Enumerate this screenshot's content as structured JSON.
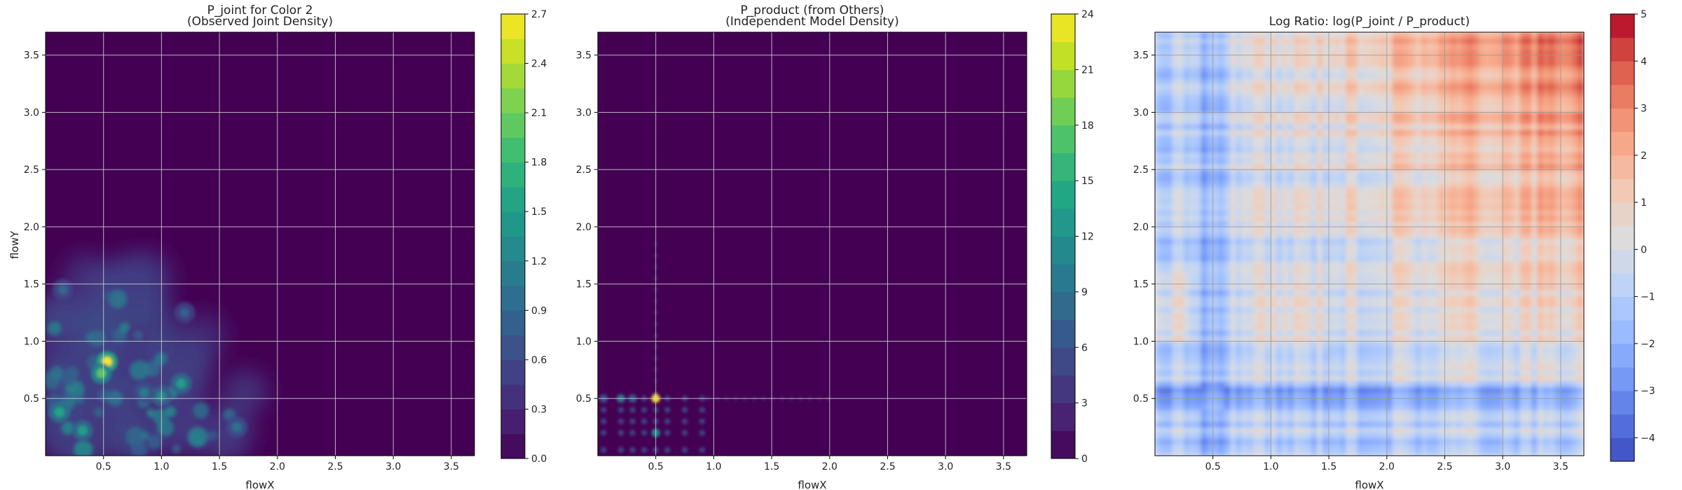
{
  "chart_data": [
    {
      "type": "heatmap",
      "title": "P_joint for Color 2",
      "subtitle": "(Observed Joint Density)",
      "xlabel": "flowX",
      "ylabel": "flowY",
      "xlim": [
        0.0,
        3.7
      ],
      "ylim": [
        0.0,
        3.7
      ],
      "xticks": [
        "0.5",
        "1.0",
        "1.5",
        "2.0",
        "2.5",
        "3.0",
        "3.5"
      ],
      "yticks": [
        "0.5",
        "1.0",
        "1.5",
        "2.0",
        "2.5",
        "3.0",
        "3.5"
      ],
      "grid": true,
      "colormap": "viridis",
      "colorbar": {
        "range": [
          0,
          2.7
        ],
        "ticks": [
          "0.0",
          "0.3",
          "0.6",
          "0.9",
          "1.2",
          "1.5",
          "1.8",
          "2.1",
          "2.4",
          "2.7"
        ],
        "levels": 18
      },
      "background_color": "#440154",
      "hotspots": [
        {
          "x": 0.53,
          "y": 0.82,
          "value": 2.7
        },
        {
          "x": 0.48,
          "y": 0.72,
          "value": 2.0
        },
        {
          "x": 1.17,
          "y": 0.63,
          "value": 1.5
        },
        {
          "x": 0.12,
          "y": 0.38,
          "value": 1.6
        },
        {
          "x": 0.32,
          "y": 0.22,
          "value": 1.5
        },
        {
          "x": 0.85,
          "y": 0.55,
          "value": 1.1
        },
        {
          "x": 1.65,
          "y": 0.25,
          "value": 1.0
        },
        {
          "x": 1.0,
          "y": 0.52,
          "value": 1.3
        },
        {
          "x": 0.15,
          "y": 1.45,
          "value": 0.9
        },
        {
          "x": 1.2,
          "y": 1.25,
          "value": 0.8
        },
        {
          "x": 0.8,
          "y": 1.05,
          "value": 0.7
        }
      ]
    },
    {
      "type": "heatmap",
      "title": "P_product (from Others)",
      "subtitle": "(Independent Model Density)",
      "xlabel": "flowX",
      "ylabel": "",
      "xlim": [
        0.0,
        3.7
      ],
      "ylim": [
        0.0,
        3.7
      ],
      "xticks": [
        "0.5",
        "1.0",
        "1.5",
        "2.0",
        "2.5",
        "3.0",
        "3.5"
      ],
      "yticks": [
        "0.5",
        "1.0",
        "1.5",
        "2.0",
        "2.5",
        "3.0",
        "3.5"
      ],
      "grid": true,
      "colormap": "viridis",
      "colorbar": {
        "range": [
          0,
          24
        ],
        "ticks": [
          "0",
          "3",
          "6",
          "9",
          "12",
          "15",
          "18",
          "21",
          "24"
        ],
        "levels": 16
      },
      "background_color": "#440154",
      "grid_points": {
        "x": [
          0.05,
          0.2,
          0.3,
          0.4,
          0.5,
          0.6,
          0.75,
          0.9
        ],
        "y": [
          0.05,
          0.2,
          0.3,
          0.4,
          0.5
        ]
      },
      "hotspots": [
        {
          "x": 0.5,
          "y": 0.5,
          "value": 24
        },
        {
          "x": 0.2,
          "y": 0.5,
          "value": 10
        },
        {
          "x": 0.5,
          "y": 0.2,
          "value": 12
        },
        {
          "x": 0.3,
          "y": 0.5,
          "value": 7
        },
        {
          "x": 0.05,
          "y": 0.5,
          "value": 6
        }
      ]
    },
    {
      "type": "heatmap",
      "title": "Log Ratio: log(P_joint / P_product)",
      "subtitle": "",
      "xlabel": "flowX",
      "ylabel": "",
      "xlim": [
        0.0,
        3.7
      ],
      "ylim": [
        0.0,
        3.7
      ],
      "xticks": [
        "0.5",
        "1.0",
        "1.5",
        "2.0",
        "2.5",
        "3.0",
        "3.5"
      ],
      "yticks": [
        "0.5",
        "1.0",
        "1.5",
        "2.0",
        "2.5",
        "3.0",
        "3.5"
      ],
      "grid": true,
      "colormap": "coolwarm",
      "colorbar": {
        "range": [
          -4.5,
          5
        ],
        "ticks": [
          "−4",
          "−3",
          "−2",
          "−1",
          "0",
          "1",
          "2",
          "3",
          "4",
          "5"
        ],
        "tick_values": [
          -4,
          -3,
          -2,
          -1,
          0,
          1,
          2,
          3,
          4,
          5
        ],
        "levels": 19
      }
    }
  ]
}
